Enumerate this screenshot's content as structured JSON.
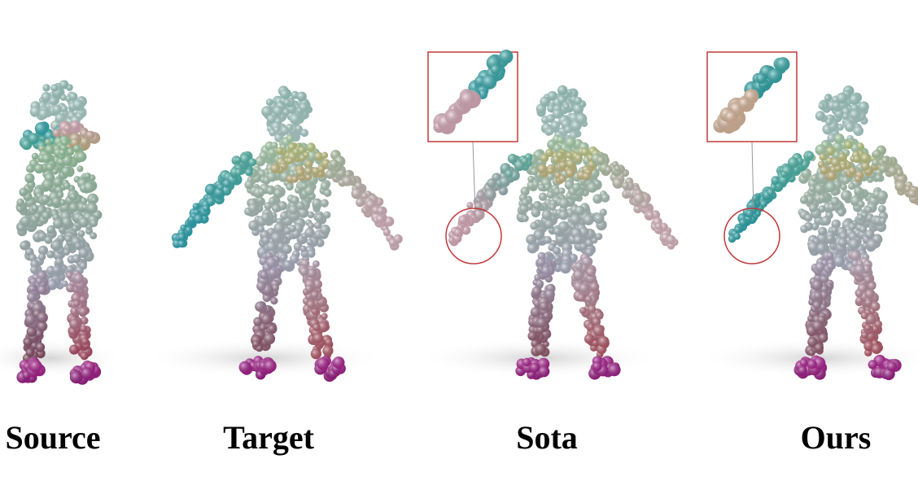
{
  "figure": {
    "panels": [
      {
        "id": "source",
        "label": "Source",
        "pose": "hands-together",
        "zoom_inset": false
      },
      {
        "id": "target",
        "label": "Target",
        "pose": "a-pose",
        "zoom_inset": false
      },
      {
        "id": "sota",
        "label": "Sota",
        "pose": "a-pose",
        "zoom_inset": true,
        "inset_hand_colors": [
          "#3fb9c4",
          "#e9b8c8"
        ]
      },
      {
        "id": "ours",
        "label": "Ours",
        "pose": "a-pose",
        "zoom_inset": true,
        "inset_hand_colors": [
          "#2fb2b8",
          "#e8c4a6"
        ]
      }
    ],
    "colors": {
      "head": "#a8d8d0",
      "left_arm": "#33b6c2",
      "right_arm": "#e8c2cc",
      "torso": "#b8bcd2",
      "thigh": "#b08aa8",
      "feet": "#c02aa0",
      "inset_border": "#c0393b",
      "shadow": "#d9d9d9"
    }
  }
}
